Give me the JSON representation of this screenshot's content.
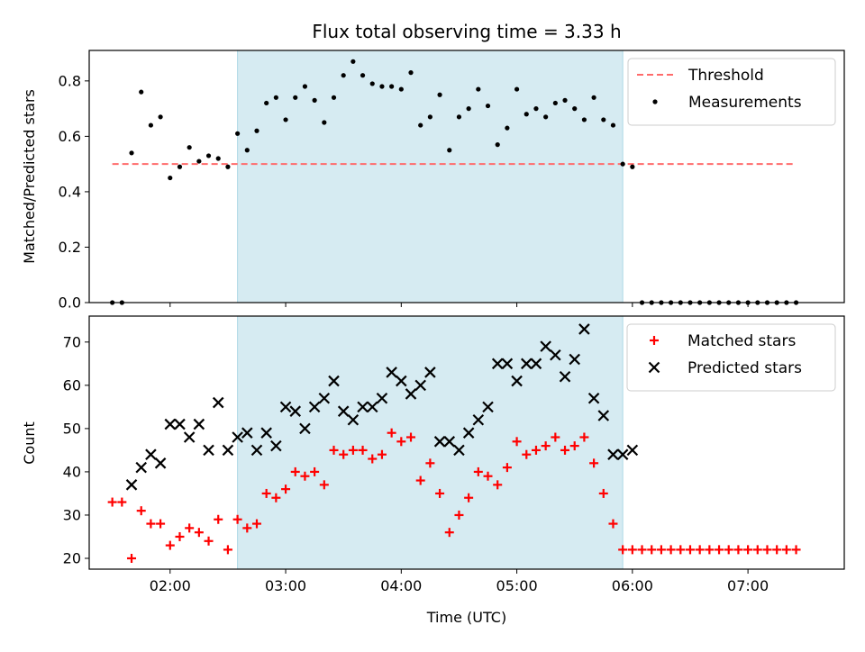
{
  "chart_data": {
    "title": "Flux total observing time = 3.33 h",
    "type": "scatter",
    "highlight": {
      "from": "02:35",
      "to": "05:55",
      "color": "#add8e6"
    },
    "x_range": [
      "01:18",
      "07:50"
    ],
    "x_ticks": [
      "02:00",
      "03:00",
      "04:00",
      "05:00",
      "06:00",
      "07:00"
    ],
    "xlabel": "Time (UTC)",
    "panels": [
      {
        "ylabel": "Matched/Predicted stars",
        "ylim": [
          0,
          0.91
        ],
        "y_ticks": [
          "0.0",
          "0.2",
          "0.4",
          "0.6",
          "0.8"
        ],
        "legend_position": "top-right",
        "series": [
          {
            "name": "Threshold",
            "type": "line",
            "color": "#ff6b6b",
            "dashed": true,
            "x": [
              "01:30",
              "07:25"
            ],
            "y": [
              0.5,
              0.5
            ]
          },
          {
            "name": "Measurements",
            "type": "scatter",
            "marker": "dot",
            "color": "#000000",
            "x": [
              "01:30",
              "01:35",
              "01:40",
              "01:45",
              "01:50",
              "01:55",
              "02:00",
              "02:05",
              "02:10",
              "02:15",
              "02:20",
              "02:25",
              "02:30",
              "02:35",
              "02:40",
              "02:45",
              "02:50",
              "02:55",
              "03:00",
              "03:05",
              "03:10",
              "03:15",
              "03:20",
              "03:25",
              "03:30",
              "03:35",
              "03:40",
              "03:45",
              "03:50",
              "03:55",
              "04:00",
              "04:05",
              "04:10",
              "04:15",
              "04:20",
              "04:25",
              "04:30",
              "04:35",
              "04:40",
              "04:45",
              "04:50",
              "04:55",
              "05:00",
              "05:05",
              "05:10",
              "05:15",
              "05:20",
              "05:25",
              "05:30",
              "05:35",
              "05:40",
              "05:45",
              "05:50",
              "05:55",
              "06:00",
              "06:05",
              "06:10",
              "06:15",
              "06:20",
              "06:25",
              "06:30",
              "06:35",
              "06:40",
              "06:45",
              "06:50",
              "06:55",
              "07:00",
              "07:05",
              "07:10",
              "07:15",
              "07:20",
              "07:25"
            ],
            "y": [
              0.0,
              0.0,
              0.54,
              0.76,
              0.64,
              0.67,
              0.45,
              0.49,
              0.56,
              0.51,
              0.53,
              0.52,
              0.49,
              0.61,
              0.55,
              0.62,
              0.72,
              0.74,
              0.66,
              0.74,
              0.78,
              0.73,
              0.65,
              0.74,
              0.82,
              0.87,
              0.82,
              0.79,
              0.78,
              0.78,
              0.77,
              0.83,
              0.64,
              0.67,
              0.75,
              0.55,
              0.67,
              0.7,
              0.77,
              0.71,
              0.57,
              0.63,
              0.77,
              0.68,
              0.7,
              0.67,
              0.72,
              0.73,
              0.7,
              0.66,
              0.74,
              0.66,
              0.64,
              0.5,
              0.49,
              0.0,
              0.0,
              0.0,
              0.0,
              0.0,
              0.0,
              0.0,
              0.0,
              0.0,
              0.0,
              0.0,
              0.0,
              0.0,
              0.0,
              0.0,
              0.0,
              0.0
            ]
          }
        ]
      },
      {
        "ylabel": "Count",
        "ylim": [
          17.5,
          76
        ],
        "y_ticks": [
          "20",
          "30",
          "40",
          "50",
          "60",
          "70"
        ],
        "legend_position": "top-right",
        "series": [
          {
            "name": "Matched stars",
            "type": "scatter",
            "marker": "plus",
            "color": "#ff0000",
            "x": [
              "01:30",
              "01:35",
              "01:40",
              "01:45",
              "01:50",
              "01:55",
              "02:00",
              "02:05",
              "02:10",
              "02:15",
              "02:20",
              "02:25",
              "02:30",
              "02:35",
              "02:40",
              "02:45",
              "02:50",
              "02:55",
              "03:00",
              "03:05",
              "03:10",
              "03:15",
              "03:20",
              "03:25",
              "03:30",
              "03:35",
              "03:40",
              "03:45",
              "03:50",
              "03:55",
              "04:00",
              "04:05",
              "04:10",
              "04:15",
              "04:20",
              "04:25",
              "04:30",
              "04:35",
              "04:40",
              "04:45",
              "04:50",
              "04:55",
              "05:00",
              "05:05",
              "05:10",
              "05:15",
              "05:20",
              "05:25",
              "05:30",
              "05:35",
              "05:40",
              "05:45",
              "05:50",
              "05:55",
              "06:00",
              "06:05",
              "06:10",
              "06:15",
              "06:20",
              "06:25",
              "06:30",
              "06:35",
              "06:40",
              "06:45",
              "06:50",
              "06:55",
              "07:00",
              "07:05",
              "07:10",
              "07:15",
              "07:20",
              "07:25"
            ],
            "y": [
              33,
              33,
              20,
              31,
              28,
              28,
              23,
              25,
              27,
              26,
              24,
              29,
              22,
              29,
              27,
              28,
              35,
              34,
              36,
              40,
              39,
              40,
              37,
              45,
              44,
              45,
              45,
              43,
              44,
              49,
              47,
              48,
              38,
              42,
              35,
              26,
              30,
              34,
              40,
              39,
              37,
              41,
              47,
              44,
              45,
              46,
              48,
              45,
              46,
              48,
              42,
              35,
              28,
              22,
              22,
              22,
              22,
              22,
              22,
              22,
              22,
              22,
              22,
              22,
              22,
              22,
              22,
              22,
              22,
              22,
              22,
              22
            ]
          },
          {
            "name": "Predicted stars",
            "type": "scatter",
            "marker": "x",
            "color": "#000000",
            "x": [
              "01:40",
              "01:45",
              "01:50",
              "01:55",
              "02:00",
              "02:05",
              "02:10",
              "02:15",
              "02:20",
              "02:25",
              "02:30",
              "02:35",
              "02:40",
              "02:45",
              "02:50",
              "02:55",
              "03:00",
              "03:05",
              "03:10",
              "03:15",
              "03:20",
              "03:25",
              "03:30",
              "03:35",
              "03:40",
              "03:45",
              "03:50",
              "03:55",
              "04:00",
              "04:05",
              "04:10",
              "04:15",
              "04:20",
              "04:25",
              "04:30",
              "04:35",
              "04:40",
              "04:45",
              "04:50",
              "04:55",
              "05:00",
              "05:05",
              "05:10",
              "05:15",
              "05:20",
              "05:25",
              "05:30",
              "05:35",
              "05:40",
              "05:45",
              "05:50",
              "05:55",
              "06:00"
            ],
            "y": [
              37,
              41,
              44,
              42,
              51,
              51,
              48,
              51,
              45,
              56,
              45,
              48,
              49,
              45,
              49,
              46,
              55,
              54,
              50,
              55,
              57,
              61,
              54,
              52,
              55,
              55,
              57,
              63,
              61,
              58,
              60,
              63,
              47,
              47,
              45,
              49,
              52,
              55,
              65,
              65,
              61,
              65,
              65,
              69,
              67,
              62,
              66,
              73,
              57,
              53,
              44,
              44,
              45
            ]
          }
        ]
      }
    ]
  }
}
